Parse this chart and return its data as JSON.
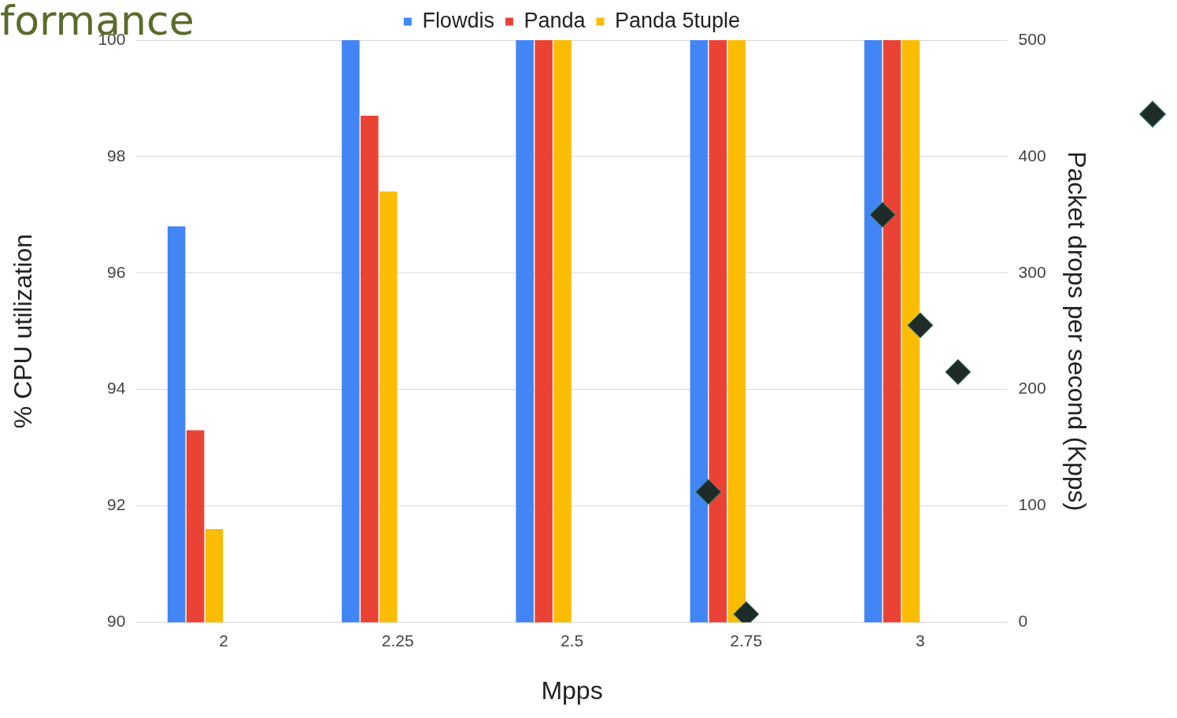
{
  "chart_data": {
    "type": "bar",
    "title": "formance",
    "xlabel": "Mpps",
    "ylabel": "% CPU utilization",
    "y2label": "Packet drops per second (Kpps)",
    "categories": [
      "2",
      "2.25",
      "2.5",
      "2.75",
      "3"
    ],
    "series": [
      {
        "name": "Flowdis",
        "color": "#4285f4",
        "values": [
          96.8,
          100,
          100,
          100,
          100
        ]
      },
      {
        "name": "Panda",
        "color": "#ea4335",
        "values": [
          93.3,
          98.7,
          100,
          100,
          100
        ]
      },
      {
        "name": "Panda 5tuple",
        "color": "#fbbc04",
        "values": [
          91.6,
          97.4,
          100,
          100,
          100
        ]
      },
      {
        "type": "scatter",
        "axis": "y2",
        "color": "#1f2b28",
        "x": [
          "2",
          "2.25",
          "2.5",
          "2.75",
          "3"
        ],
        "values": [
          null,
          null,
          null,
          112,
          350
        ]
      },
      {
        "type": "scatter",
        "axis": "y2",
        "color": "#1f2b28",
        "x": [
          "2",
          "2.25",
          "2.5",
          "2.75",
          "3"
        ],
        "values": [
          null,
          null,
          null,
          7,
          255
        ]
      },
      {
        "type": "scatter",
        "axis": "y2",
        "color": "#1f2b28",
        "x": [
          "2",
          "2.25",
          "2.5",
          "2.75",
          "3"
        ],
        "values": [
          null,
          null,
          null,
          null,
          215
        ]
      }
    ],
    "ylim": [
      90,
      100
    ],
    "yticks": [
      90,
      92,
      94,
      96,
      98,
      100
    ],
    "y2lim": [
      0,
      500
    ],
    "y2ticks": [
      0,
      100,
      200,
      300,
      400,
      500
    ],
    "grid": "y",
    "legend": "top",
    "marker": "diamond"
  }
}
